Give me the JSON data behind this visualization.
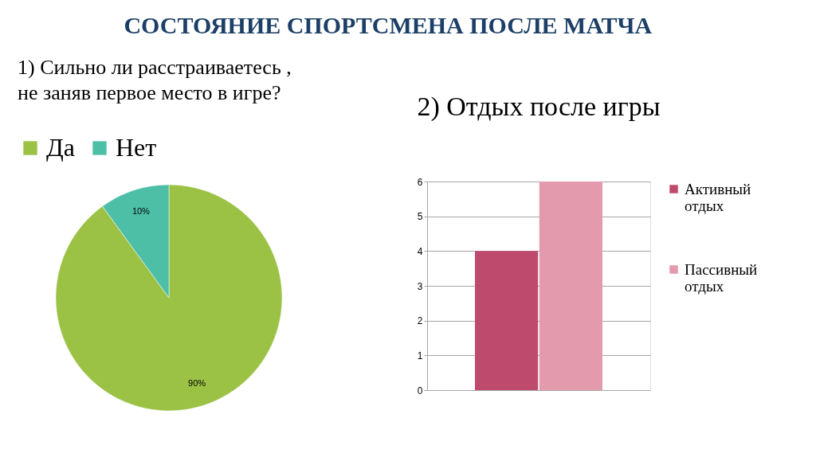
{
  "chart_data": [
    {
      "type": "pie",
      "title": "СОСТОЯНИЕ СПОРТСМЕНА ПОСЛЕ МАТЧА",
      "subtitle": "1) Сильно ли расстраиваетесь , не заняв первое место в игре?",
      "categories": [
        "Да",
        "Нет"
      ],
      "values": [
        90,
        10
      ],
      "colors": [
        "#9bc145",
        "#4cbfa6"
      ],
      "value_labels": [
        "90%",
        "10%"
      ],
      "legend": "top"
    },
    {
      "type": "bar",
      "title": "2) Отдых после игры",
      "categories": [
        null
      ],
      "series": [
        {
          "name": "Активный отдых",
          "color": "#be4b6e",
          "values": [
            4
          ]
        },
        {
          "name": "Пассивный отдых",
          "color": "#e39aac",
          "values": [
            6
          ]
        }
      ],
      "ylim": [
        0,
        6
      ],
      "yticks": [
        0,
        1,
        2,
        3,
        4,
        5,
        6
      ],
      "grid": "y",
      "legend": "right",
      "tick_labels": "y"
    }
  ]
}
